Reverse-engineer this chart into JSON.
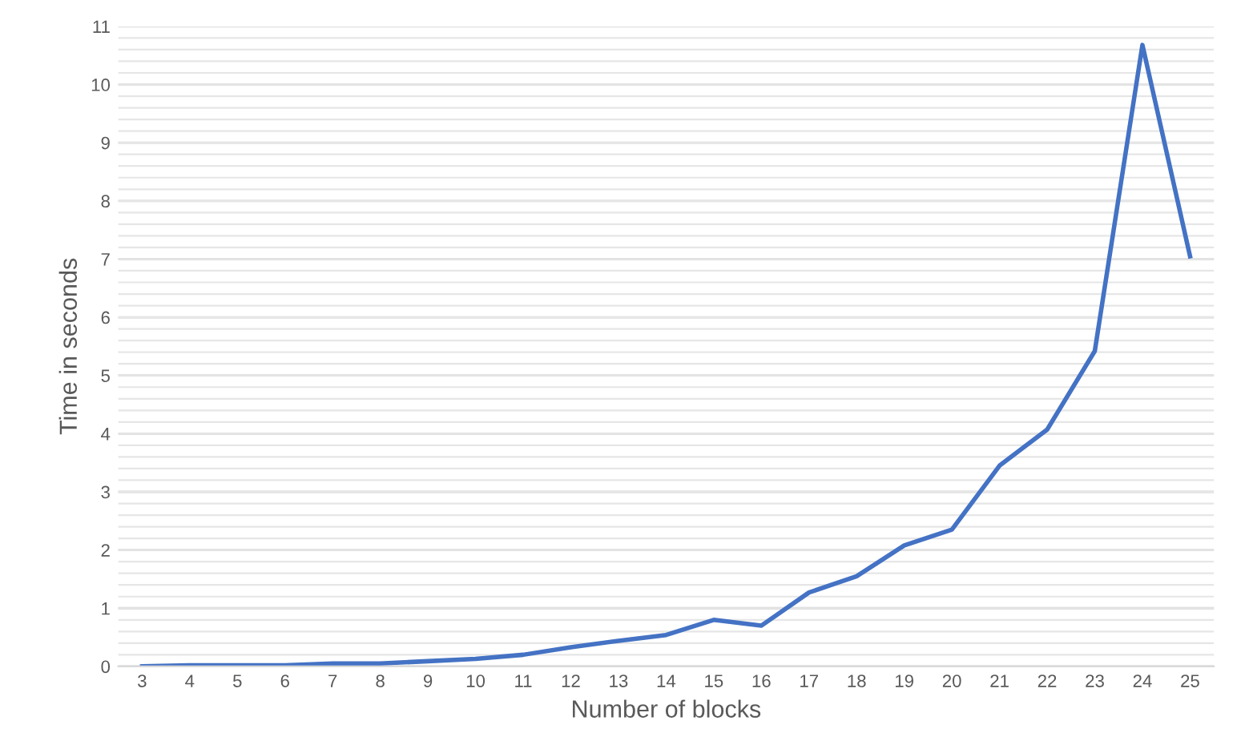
{
  "chart_data": {
    "type": "line",
    "xlabel": "Number of blocks",
    "ylabel": "Time in seconds",
    "categories": [
      "3",
      "4",
      "5",
      "6",
      "7",
      "8",
      "9",
      "10",
      "11",
      "12",
      "13",
      "14",
      "15",
      "16",
      "17",
      "18",
      "19",
      "20",
      "21",
      "22",
      "23",
      "24",
      "25"
    ],
    "series": [
      {
        "color": "#4472c4",
        "values": [
          0,
          0.02,
          0.02,
          0.02,
          0.05,
          0.05,
          0.09,
          0.13,
          0.2,
          0.33,
          0.44,
          0.54,
          0.8,
          0.7,
          1.27,
          1.55,
          2.08,
          2.35,
          3.45,
          4.07,
          5.42,
          10.68,
          7.05
        ]
      }
    ],
    "ylim": [
      0,
      11
    ],
    "yticks": [
      0,
      {
        "value": 0.2,
        "label": null
      },
      {
        "value": 0.4,
        "label": null
      },
      {
        "value": 0.6,
        "label": null
      },
      {
        "value": 0.8,
        "label": null
      },
      1,
      {
        "value": 1.2,
        "label": null
      },
      {
        "value": 1.4,
        "label": null
      },
      {
        "value": 1.6,
        "label": null
      },
      {
        "value": 1.8,
        "label": null
      },
      2,
      {
        "value": 2.2,
        "label": null
      },
      {
        "value": 2.4,
        "label": null
      },
      {
        "value": 2.6,
        "label": null
      },
      {
        "value": 2.8,
        "label": null
      },
      3,
      {
        "value": 3.2,
        "label": null
      },
      {
        "value": 3.4,
        "label": null
      },
      {
        "value": 3.6,
        "label": null
      },
      {
        "value": 3.8,
        "label": null
      },
      4,
      {
        "value": 4.2,
        "label": null
      },
      {
        "value": 4.4,
        "label": null
      },
      {
        "value": 4.6,
        "label": null
      },
      {
        "value": 4.8,
        "label": null
      },
      5,
      {
        "value": 5.2,
        "label": null
      },
      {
        "value": 5.4,
        "label": null
      },
      {
        "value": 5.6,
        "label": null
      },
      {
        "value": 5.8,
        "label": null
      },
      6,
      {
        "value": 6.2,
        "label": null
      },
      {
        "value": 6.4,
        "label": null
      },
      {
        "value": 6.6,
        "label": null
      },
      {
        "value": 6.8,
        "label": null
      },
      7,
      {
        "value": 7.2,
        "label": null
      },
      {
        "value": 7.4,
        "label": null
      },
      {
        "value": 7.6,
        "label": null
      },
      {
        "value": 7.8,
        "label": null
      },
      8,
      {
        "value": 8.2,
        "label": null
      },
      {
        "value": 8.4,
        "label": null
      },
      {
        "value": 8.6,
        "label": null
      },
      {
        "value": 8.8,
        "label": null
      },
      9,
      {
        "value": 9.2,
        "label": null
      },
      {
        "value": 9.4,
        "label": null
      },
      {
        "value": 9.6,
        "label": null
      },
      {
        "value": 9.8,
        "label": null
      },
      10,
      {
        "value": 10.2,
        "label": null
      },
      {
        "value": 10.4,
        "label": null
      },
      {
        "value": 10.6,
        "label": null
      },
      {
        "value": 10.8,
        "label": null
      },
      11
    ],
    "grid": "y",
    "line_style": "solid",
    "marker": "none"
  }
}
